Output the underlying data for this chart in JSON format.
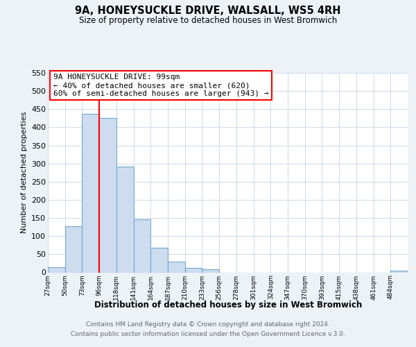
{
  "title": "9A, HONEYSUCKLE DRIVE, WALSALL, WS5 4RH",
  "subtitle": "Size of property relative to detached houses in West Bromwich",
  "xlabel": "Distribution of detached houses by size in West Bromwich",
  "ylabel": "Number of detached properties",
  "bar_color": "#cddcee",
  "bar_edge_color": "#6fa8d0",
  "bin_labels": [
    "27sqm",
    "50sqm",
    "73sqm",
    "96sqm",
    "118sqm",
    "141sqm",
    "164sqm",
    "187sqm",
    "210sqm",
    "233sqm",
    "256sqm",
    "278sqm",
    "301sqm",
    "324sqm",
    "347sqm",
    "370sqm",
    "393sqm",
    "415sqm",
    "438sqm",
    "461sqm",
    "484sqm"
  ],
  "bar_values": [
    15,
    128,
    438,
    425,
    292,
    147,
    67,
    30,
    12,
    8,
    0,
    0,
    0,
    0,
    0,
    0,
    0,
    0,
    0,
    0,
    5
  ],
  "ylim": [
    0,
    550
  ],
  "yticks": [
    0,
    50,
    100,
    150,
    200,
    250,
    300,
    350,
    400,
    450,
    500,
    550
  ],
  "red_line_x": 3,
  "annotation_line1": "9A HONEYSUCKLE DRIVE: 99sqm",
  "annotation_line2": "← 40% of detached houses are smaller (620)",
  "annotation_line3": "60% of semi-detached houses are larger (943) →",
  "footer_line1": "Contains HM Land Registry data © Crown copyright and database right 2024.",
  "footer_line2": "Contains public sector information licensed under the Open Government Licence v.3.0.",
  "background_color": "#edf2f7",
  "plot_bg_color": "#ffffff",
  "grid_color": "#c5d5e5"
}
